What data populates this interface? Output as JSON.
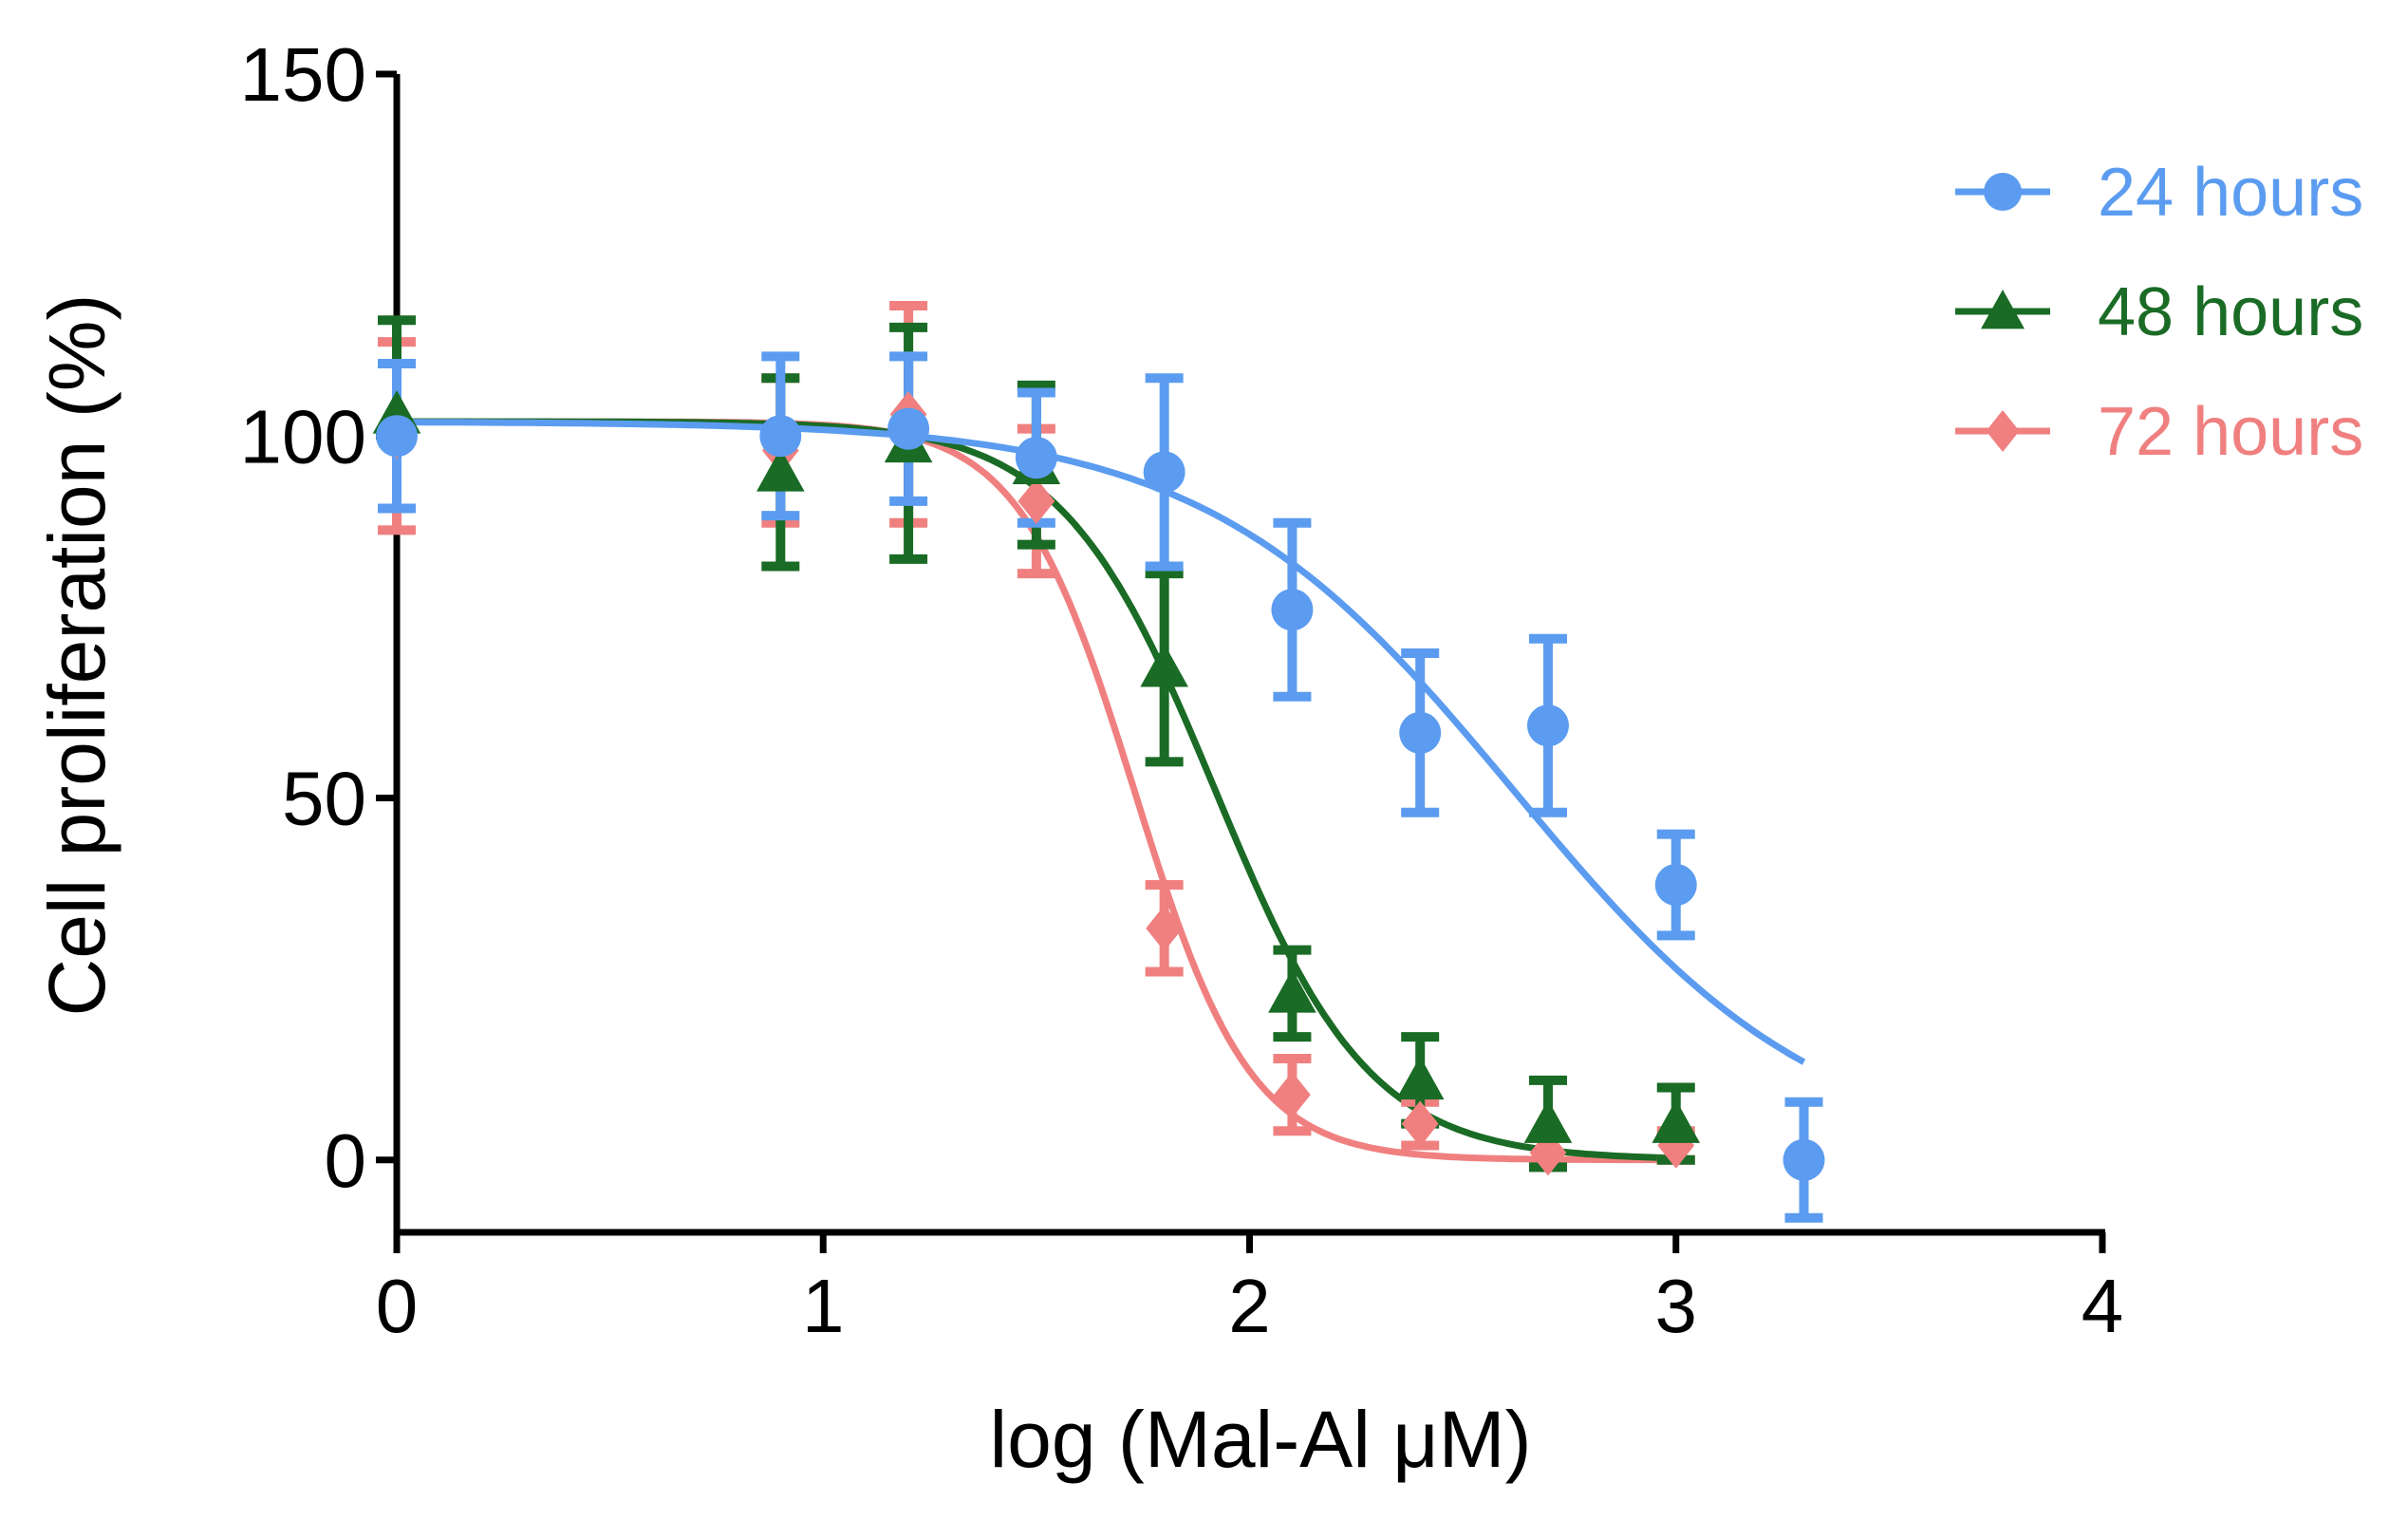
{
  "chart_data": {
    "type": "scatter",
    "xlabel": "log (Mal-Al μM)",
    "ylabel": "Cell proliferation (%)",
    "xlim": [
      0,
      4
    ],
    "ylim": [
      -10,
      150
    ],
    "x_ticks": [
      {
        "value": 0,
        "label": "0"
      },
      {
        "value": 1,
        "label": "1"
      },
      {
        "value": 2,
        "label": "2"
      },
      {
        "value": 3,
        "label": "3"
      },
      {
        "value": 4,
        "label": "4"
      }
    ],
    "y_ticks": [
      {
        "value": 0,
        "label": "0"
      },
      {
        "value": 50,
        "label": "50"
      },
      {
        "value": 100,
        "label": "100"
      },
      {
        "value": 150,
        "label": "150"
      }
    ],
    "legend_position": "top-right",
    "series": [
      {
        "name": "24 hours",
        "color": "#5B9CF0",
        "marker": "circle",
        "x": [
          0,
          0.9,
          1.2,
          1.5,
          1.8,
          2.1,
          2.4,
          2.7,
          3.0,
          3.3
        ],
        "y": [
          100,
          100,
          101,
          97,
          95,
          76,
          59,
          60,
          38,
          0
        ],
        "err": [
          10,
          11,
          10,
          9,
          13,
          12,
          11,
          12,
          7,
          8
        ],
        "fit": {
          "top": 102,
          "bottom": 0,
          "log_ic50": 2.62,
          "hill": 1.2,
          "x_end": 3.3
        }
      },
      {
        "name": "48 hours",
        "color": "#1A6B25",
        "marker": "triangle",
        "x": [
          0,
          0.9,
          1.2,
          1.5,
          1.8,
          2.1,
          2.4,
          2.7,
          3.0
        ],
        "y": [
          103,
          95,
          99,
          96,
          68,
          23,
          11,
          5,
          5
        ],
        "err": [
          13,
          13,
          16,
          11,
          13,
          6,
          6,
          6,
          5
        ],
        "fit": {
          "top": 102,
          "bottom": 0,
          "log_ic50": 1.92,
          "hill": 2.4,
          "x_end": 3.0
        }
      },
      {
        "name": "72 hours",
        "color": "#F08080",
        "marker": "diamond",
        "x": [
          0,
          0.9,
          1.2,
          1.5,
          1.8,
          2.1,
          2.4,
          2.7,
          3.0
        ],
        "y": [
          100,
          98,
          103,
          91,
          32,
          9,
          5,
          1,
          2
        ],
        "err": [
          13,
          10,
          15,
          10,
          6,
          5,
          3,
          2,
          2
        ],
        "fit": {
          "top": 102,
          "bottom": 0,
          "log_ic50": 1.73,
          "hill": 3.2,
          "x_end": 3.0
        }
      }
    ]
  }
}
